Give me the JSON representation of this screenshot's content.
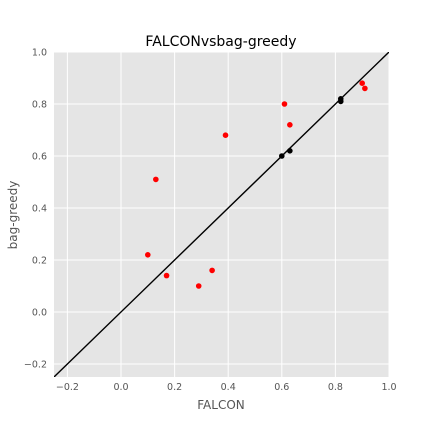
{
  "chart_data": {
    "type": "scatter",
    "title": "FALCONvsbag-greedy",
    "xlabel": "FALCON",
    "ylabel": "bag-greedy",
    "xlim": [
      -0.25,
      1.0
    ],
    "ylim": [
      -0.25,
      1.0
    ],
    "xticks": [
      -0.2,
      0.0,
      0.2,
      0.4,
      0.6,
      0.8,
      1.0
    ],
    "yticks": [
      -0.2,
      0.0,
      0.2,
      0.4,
      0.6,
      0.8,
      1.0
    ],
    "xtick_labels": [
      "−0.2",
      "0.0",
      "0.2",
      "0.4",
      "0.6",
      "0.8",
      "1.0"
    ],
    "ytick_labels": [
      "−0.2",
      "0.0",
      "0.2",
      "0.4",
      "0.6",
      "0.8",
      "1.0"
    ],
    "grid": true,
    "reference_line": "y = x",
    "series": [
      {
        "color": "#ff0000",
        "points": [
          {
            "x": 0.1,
            "y": 0.22
          },
          {
            "x": 0.13,
            "y": 0.51
          },
          {
            "x": 0.17,
            "y": 0.14
          },
          {
            "x": 0.29,
            "y": 0.1
          },
          {
            "x": 0.34,
            "y": 0.16
          },
          {
            "x": 0.39,
            "y": 0.68
          },
          {
            "x": 0.61,
            "y": 0.8
          },
          {
            "x": 0.63,
            "y": 0.72
          },
          {
            "x": 0.9,
            "y": 0.88
          },
          {
            "x": 0.91,
            "y": 0.86
          }
        ]
      },
      {
        "color": "#000000",
        "points": [
          {
            "x": 0.6,
            "y": 0.6
          },
          {
            "x": 0.63,
            "y": 0.62
          },
          {
            "x": 0.82,
            "y": 0.82
          },
          {
            "x": 0.82,
            "y": 0.81
          }
        ]
      }
    ],
    "colors": {
      "panel_background": "#e5e5e5",
      "grid": "#ffffff",
      "reference_line": "#000000"
    }
  }
}
